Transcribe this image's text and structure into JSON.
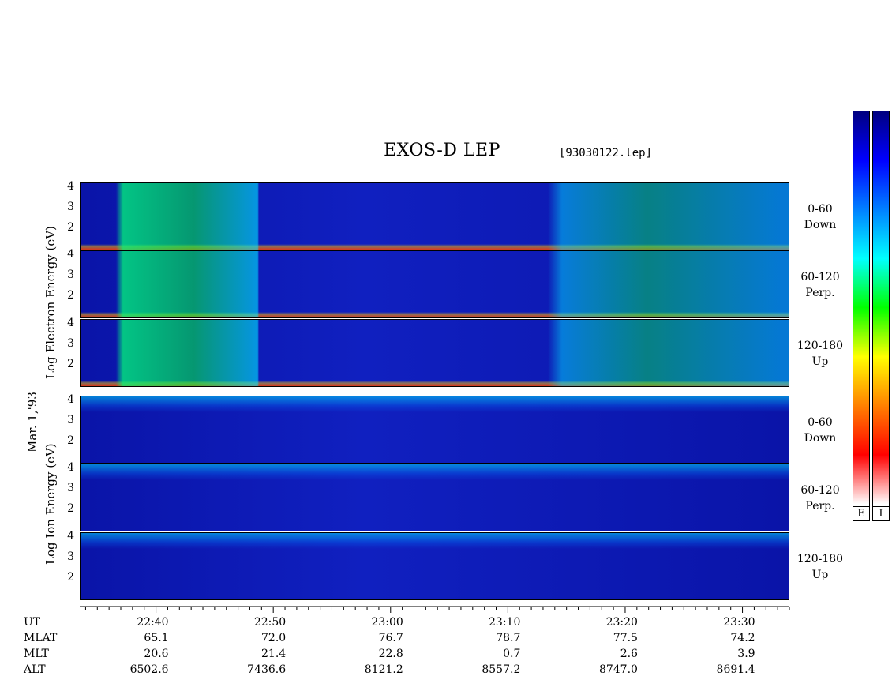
{
  "header": {
    "title": "EXOS-D LEP",
    "file": "[93030122.lep]"
  },
  "left_labels": {
    "date": "Mar. 1,'93",
    "electron_axis": "Log  Electron  Energy  (eV)",
    "ion_axis": "Log  Ion  Energy  (eV)"
  },
  "panels": [
    {
      "group": "electron",
      "angle": "0-60",
      "dir": "Down"
    },
    {
      "group": "electron",
      "angle": "60-120",
      "dir": "Perp."
    },
    {
      "group": "electron",
      "angle": "120-180",
      "dir": "Up"
    },
    {
      "group": "ion",
      "angle": "0-60",
      "dir": "Down"
    },
    {
      "group": "ion",
      "angle": "60-120",
      "dir": "Perp."
    },
    {
      "group": "ion",
      "angle": "120-180",
      "dir": "Up"
    }
  ],
  "colorbar": {
    "labels": [
      "E",
      "I"
    ],
    "colors": [
      "#000080",
      "#0000ff",
      "#0080ff",
      "#00ffff",
      "#00ff00",
      "#ffff00",
      "#ff8000",
      "#ff0000",
      "#ffffff"
    ]
  },
  "chart_data": {
    "type": "heatmap",
    "title": "EXOS-D LEP",
    "ylabel_electron": "Log Electron Energy (eV)",
    "ylabel_ion": "Log Ion Energy (eV)",
    "y_ticks": [
      "4",
      "3",
      "2"
    ],
    "ylim": [
      1,
      4.2
    ],
    "x_axis_rows": [
      {
        "label": "UT",
        "values": [
          "22:40",
          "22:50",
          "23:00",
          "23:10",
          "23:20",
          "23:30"
        ]
      },
      {
        "label": "MLAT",
        "values": [
          "65.1",
          "72.0",
          "76.7",
          "78.7",
          "77.5",
          "74.2"
        ]
      },
      {
        "label": "MLT",
        "values": [
          "20.6",
          "21.4",
          "22.8",
          "0.7",
          "2.6",
          "3.9"
        ]
      },
      {
        "label": "ALT",
        "values": [
          "6502.6",
          "7436.6",
          "8121.2",
          "8557.2",
          "8747.0",
          "8691.4"
        ]
      }
    ],
    "ut_minutes": [
      1360,
      1370,
      1380,
      1390,
      1400,
      1410
    ],
    "x_range_minutes": [
      1353.5,
      1414
    ]
  }
}
